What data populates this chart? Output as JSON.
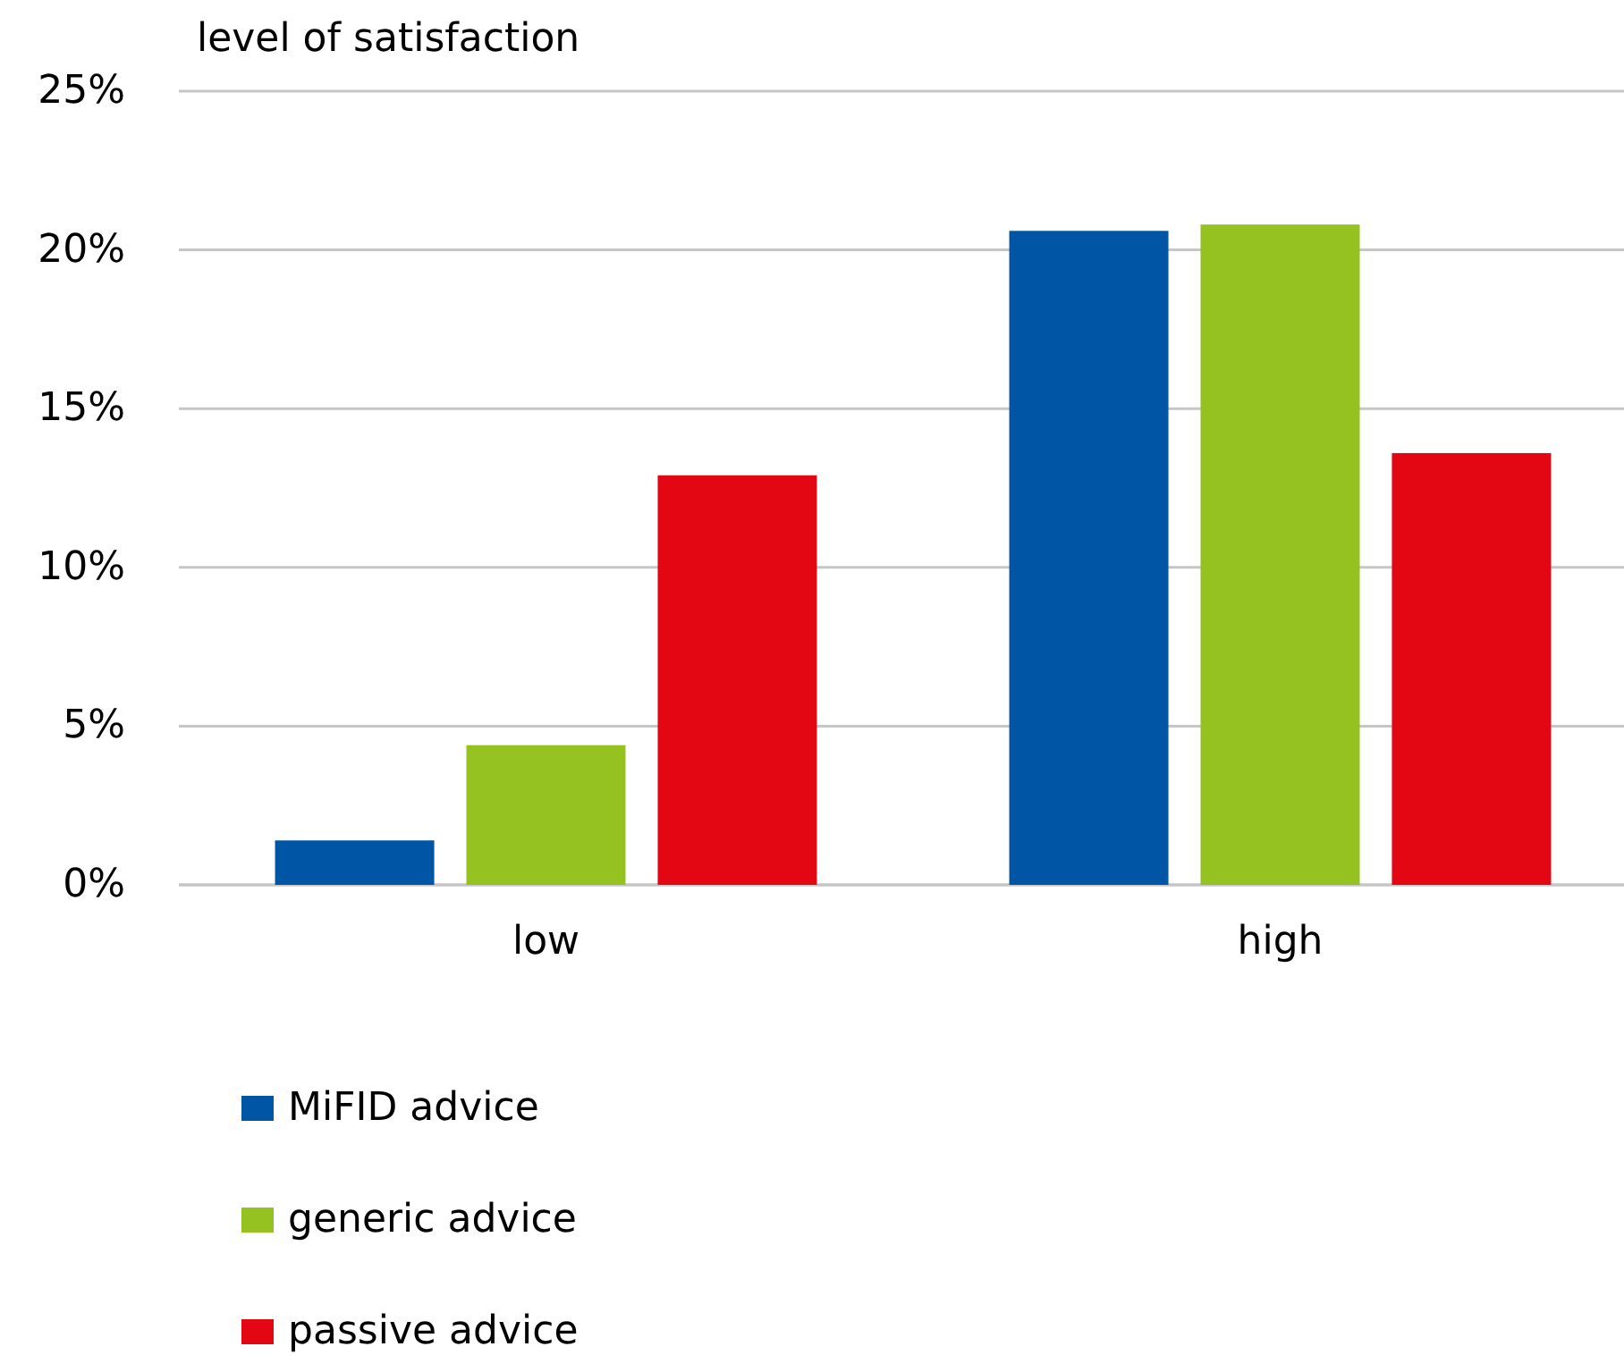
{
  "chart_data": {
    "type": "bar",
    "ylabel": "level of satisfaction",
    "categories": [
      "low",
      "high"
    ],
    "series": [
      {
        "name": "MiFID advice",
        "color": "#0055a4",
        "values": [
          1.4,
          20.6
        ]
      },
      {
        "name": "generic advice",
        "color": "#95c121",
        "values": [
          4.4,
          20.8
        ]
      },
      {
        "name": "passive advice",
        "color": "#e30613",
        "values": [
          12.9,
          13.6
        ]
      }
    ],
    "ylim": [
      0,
      25
    ],
    "yticks": [
      {
        "value": 0,
        "label": "0%"
      },
      {
        "value": 5,
        "label": "5%"
      },
      {
        "value": 10,
        "label": "10%"
      },
      {
        "value": 15,
        "label": "15%"
      },
      {
        "value": 20,
        "label": "20%"
      },
      {
        "value": 25,
        "label": "25%"
      }
    ],
    "grid": "y",
    "legend": "bottom left"
  }
}
